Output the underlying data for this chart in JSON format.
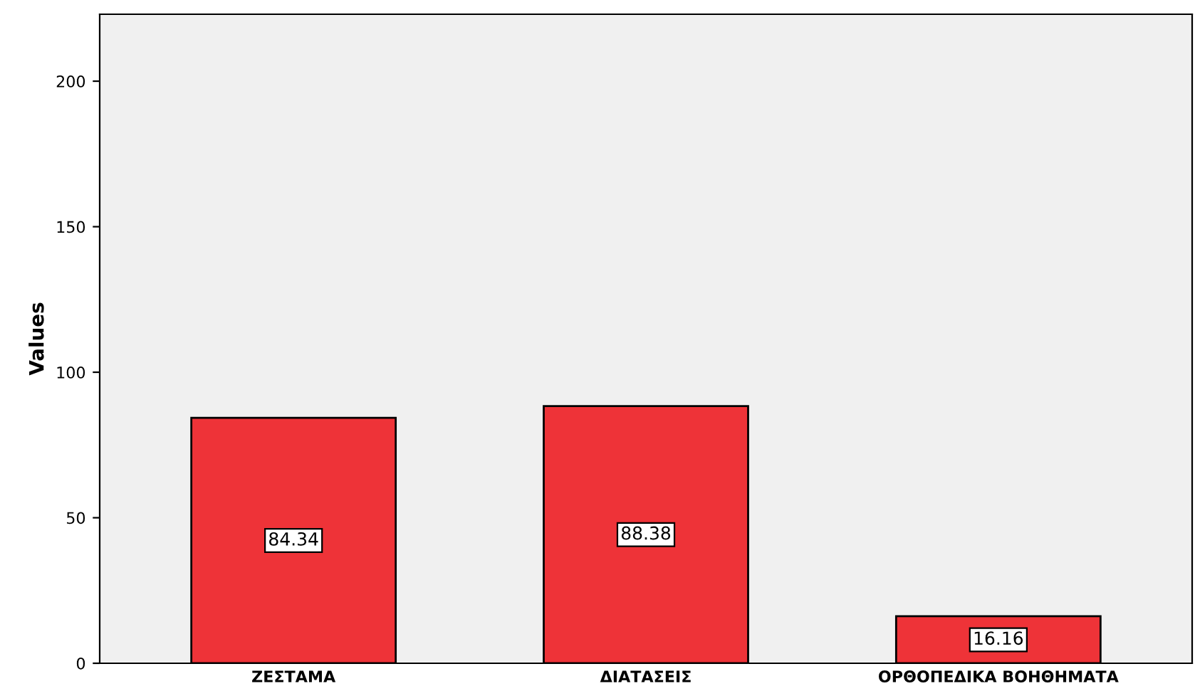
{
  "chart_data": {
    "type": "bar",
    "ylabel": "Values",
    "categories": [
      "ΖΕΣΤΑΜΑ",
      "ΔΙΑΤΑΣΕΙΣ",
      "ΟΡΘΟΠΕΔΙΚΑ ΒΟΗΘΗΜΑΤΑ"
    ],
    "values": [
      84.34,
      88.38,
      16.16
    ],
    "color": "#ee3338",
    "ylim": [
      0,
      223
    ],
    "yticks": [
      0,
      50,
      100,
      150,
      200
    ],
    "grid": false,
    "legend": false,
    "data_labels": true
  }
}
